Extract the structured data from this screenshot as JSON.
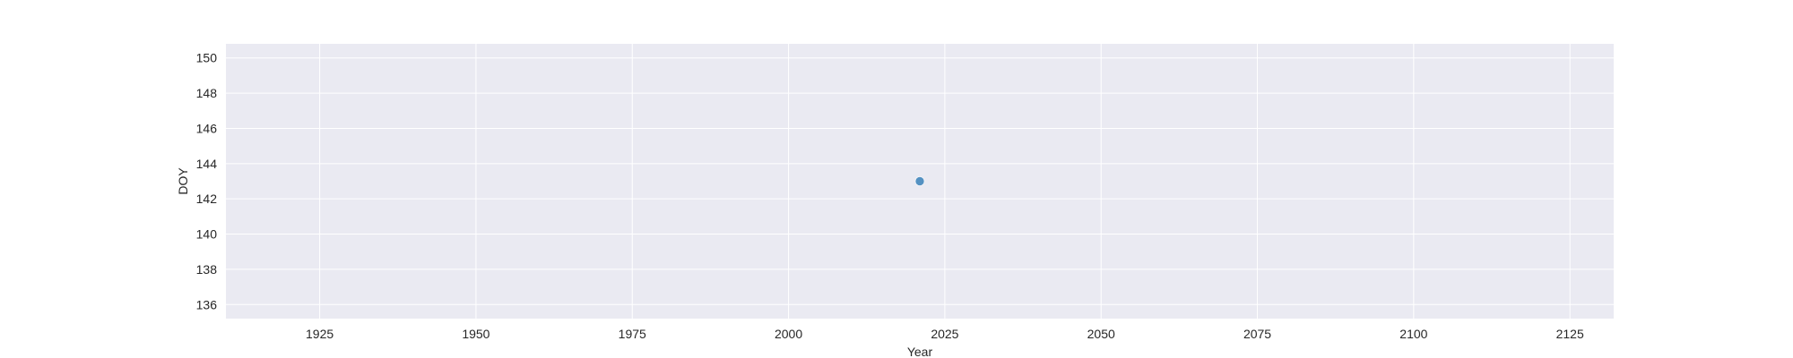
{
  "chart_data": {
    "type": "scatter",
    "title": "",
    "xlabel": "Year",
    "ylabel": "DOY",
    "xlim": [
      1910,
      2132
    ],
    "ylim": [
      135.2,
      150.8
    ],
    "xticks": [
      1925,
      1950,
      1975,
      2000,
      2025,
      2050,
      2075,
      2100,
      2125
    ],
    "yticks": [
      136,
      138,
      140,
      142,
      144,
      146,
      148,
      150
    ],
    "grid": true,
    "legend": "none",
    "series": [
      {
        "color": "#4c8cbf",
        "points": [
          {
            "x": 2021,
            "y": 143
          }
        ]
      }
    ]
  },
  "colors": {
    "plot_background": "#eaeaf2",
    "grid": "#ffffff",
    "text": "#262626"
  }
}
